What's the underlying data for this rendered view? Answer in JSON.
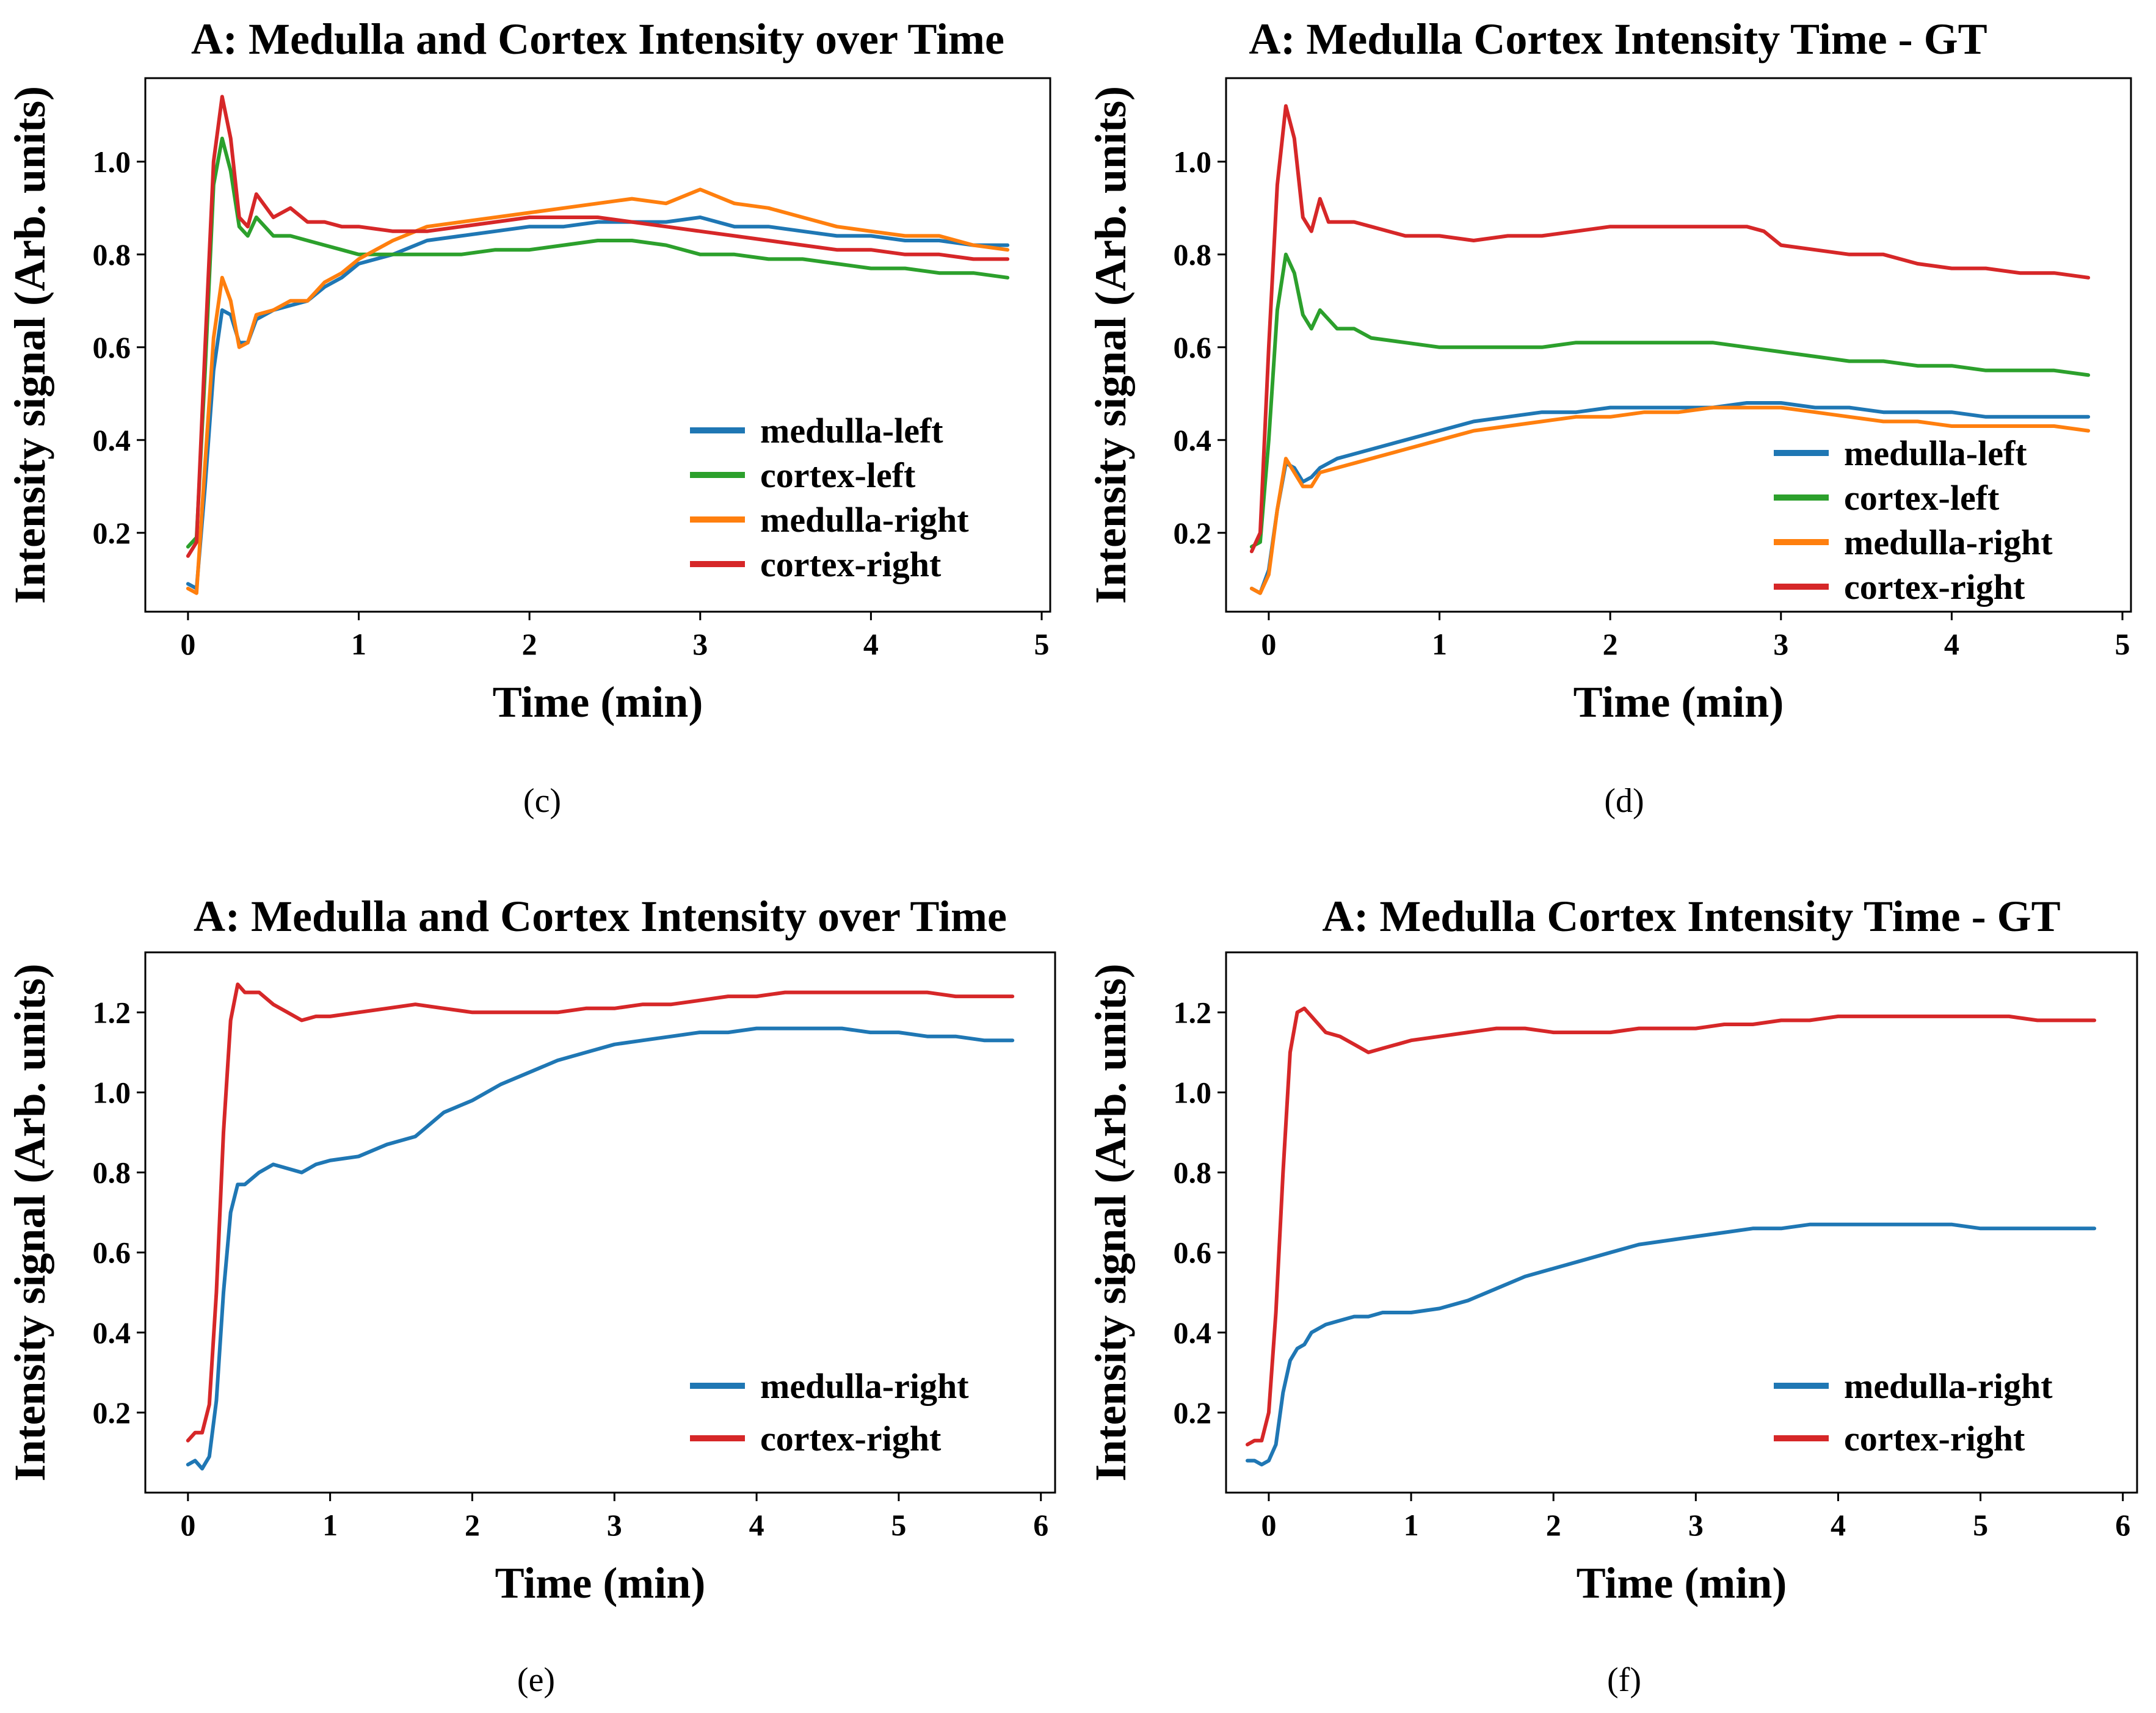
{
  "colors": {
    "blue": "#1f77b4",
    "green": "#2ca02c",
    "orange": "#ff7f0e",
    "red": "#d62728"
  },
  "chart_data": [
    {
      "type": "line",
      "caption": "(c)",
      "title": "A: Medulla and Cortex Intensity over Time",
      "xlabel": "Time (min)",
      "ylabel": "Intensity signal (Arb. units)",
      "xlim": [
        -0.25,
        5.05
      ],
      "ylim": [
        0.03,
        1.18
      ],
      "xticks": [
        0,
        1,
        2,
        3,
        4,
        5
      ],
      "yticks": [
        0.2,
        0.4,
        0.6,
        0.8,
        1.0
      ],
      "legend_position": "lower-right",
      "series": [
        {
          "name": "medulla-left",
          "color": "#1f77b4",
          "x": [
            0,
            0.05,
            0.1,
            0.15,
            0.2,
            0.25,
            0.3,
            0.35,
            0.4,
            0.5,
            0.6,
            0.7,
            0.8,
            0.9,
            1.0,
            1.2,
            1.4,
            1.6,
            1.8,
            2.0,
            2.2,
            2.4,
            2.6,
            2.8,
            3.0,
            3.2,
            3.4,
            3.6,
            3.8,
            4.0,
            4.2,
            4.4,
            4.6,
            4.8
          ],
          "y": [
            0.09,
            0.08,
            0.3,
            0.55,
            0.68,
            0.67,
            0.61,
            0.61,
            0.66,
            0.68,
            0.69,
            0.7,
            0.73,
            0.75,
            0.78,
            0.8,
            0.83,
            0.84,
            0.85,
            0.86,
            0.86,
            0.87,
            0.87,
            0.87,
            0.88,
            0.86,
            0.86,
            0.85,
            0.84,
            0.84,
            0.83,
            0.83,
            0.82,
            0.82
          ]
        },
        {
          "name": "cortex-left",
          "color": "#2ca02c",
          "x": [
            0,
            0.05,
            0.1,
            0.15,
            0.2,
            0.25,
            0.3,
            0.35,
            0.4,
            0.5,
            0.6,
            0.7,
            0.8,
            0.9,
            1.0,
            1.2,
            1.4,
            1.6,
            1.8,
            2.0,
            2.2,
            2.4,
            2.6,
            2.8,
            3.0,
            3.2,
            3.4,
            3.6,
            3.8,
            4.0,
            4.2,
            4.4,
            4.6,
            4.8
          ],
          "y": [
            0.17,
            0.19,
            0.55,
            0.95,
            1.05,
            0.98,
            0.86,
            0.84,
            0.88,
            0.84,
            0.84,
            0.83,
            0.82,
            0.81,
            0.8,
            0.8,
            0.8,
            0.8,
            0.81,
            0.81,
            0.82,
            0.83,
            0.83,
            0.82,
            0.8,
            0.8,
            0.79,
            0.79,
            0.78,
            0.77,
            0.77,
            0.76,
            0.76,
            0.75
          ]
        },
        {
          "name": "medulla-right",
          "color": "#ff7f0e",
          "x": [
            0,
            0.05,
            0.1,
            0.15,
            0.2,
            0.25,
            0.3,
            0.35,
            0.4,
            0.5,
            0.6,
            0.7,
            0.8,
            0.9,
            1.0,
            1.2,
            1.4,
            1.6,
            1.8,
            2.0,
            2.2,
            2.4,
            2.6,
            2.8,
            3.0,
            3.2,
            3.4,
            3.6,
            3.8,
            4.0,
            4.2,
            4.4,
            4.6,
            4.8
          ],
          "y": [
            0.08,
            0.07,
            0.35,
            0.62,
            0.75,
            0.7,
            0.6,
            0.61,
            0.67,
            0.68,
            0.7,
            0.7,
            0.74,
            0.76,
            0.79,
            0.83,
            0.86,
            0.87,
            0.88,
            0.89,
            0.9,
            0.91,
            0.92,
            0.91,
            0.94,
            0.91,
            0.9,
            0.88,
            0.86,
            0.85,
            0.84,
            0.84,
            0.82,
            0.81
          ]
        },
        {
          "name": "cortex-right",
          "color": "#d62728",
          "x": [
            0,
            0.05,
            0.1,
            0.15,
            0.2,
            0.25,
            0.3,
            0.35,
            0.4,
            0.5,
            0.6,
            0.7,
            0.8,
            0.9,
            1.0,
            1.2,
            1.4,
            1.6,
            1.8,
            2.0,
            2.2,
            2.4,
            2.6,
            2.8,
            3.0,
            3.2,
            3.4,
            3.6,
            3.8,
            4.0,
            4.2,
            4.4,
            4.6,
            4.8
          ],
          "y": [
            0.15,
            0.18,
            0.6,
            1.0,
            1.14,
            1.05,
            0.88,
            0.86,
            0.93,
            0.88,
            0.9,
            0.87,
            0.87,
            0.86,
            0.86,
            0.85,
            0.85,
            0.86,
            0.87,
            0.88,
            0.88,
            0.88,
            0.87,
            0.86,
            0.85,
            0.84,
            0.83,
            0.82,
            0.81,
            0.81,
            0.8,
            0.8,
            0.79,
            0.79
          ]
        }
      ]
    },
    {
      "type": "line",
      "caption": "(d)",
      "title": "A: Medulla Cortex Intensity Time - GT",
      "xlabel": "Time (min)",
      "ylabel": "Intensity signal (Arb. units)",
      "xlim": [
        -0.25,
        5.05
      ],
      "ylim": [
        0.03,
        1.18
      ],
      "xticks": [
        0,
        1,
        2,
        3,
        4,
        5
      ],
      "yticks": [
        0.2,
        0.4,
        0.6,
        0.8,
        1.0
      ],
      "legend_position": "lower-right",
      "series": [
        {
          "name": "medulla-left",
          "color": "#1f77b4",
          "x": [
            -0.1,
            -0.05,
            0,
            0.05,
            0.1,
            0.15,
            0.2,
            0.25,
            0.3,
            0.4,
            0.5,
            0.6,
            0.8,
            1.0,
            1.2,
            1.4,
            1.6,
            1.8,
            2.0,
            2.2,
            2.4,
            2.6,
            2.8,
            3.0,
            3.2,
            3.4,
            3.6,
            3.8,
            4.0,
            4.2,
            4.4,
            4.6,
            4.8
          ],
          "y": [
            0.08,
            0.07,
            0.12,
            0.25,
            0.35,
            0.34,
            0.31,
            0.32,
            0.34,
            0.36,
            0.37,
            0.38,
            0.4,
            0.42,
            0.44,
            0.45,
            0.46,
            0.46,
            0.47,
            0.47,
            0.47,
            0.47,
            0.48,
            0.48,
            0.47,
            0.47,
            0.46,
            0.46,
            0.46,
            0.45,
            0.45,
            0.45,
            0.45
          ]
        },
        {
          "name": "cortex-left",
          "color": "#2ca02c",
          "x": [
            -0.1,
            -0.05,
            0,
            0.05,
            0.1,
            0.15,
            0.2,
            0.25,
            0.3,
            0.4,
            0.5,
            0.6,
            0.8,
            1.0,
            1.2,
            1.4,
            1.6,
            1.8,
            2.0,
            2.2,
            2.4,
            2.6,
            2.8,
            3.0,
            3.2,
            3.4,
            3.6,
            3.8,
            4.0,
            4.2,
            4.4,
            4.6,
            4.8
          ],
          "y": [
            0.17,
            0.18,
            0.4,
            0.68,
            0.8,
            0.76,
            0.67,
            0.64,
            0.68,
            0.64,
            0.64,
            0.62,
            0.61,
            0.6,
            0.6,
            0.6,
            0.6,
            0.61,
            0.61,
            0.61,
            0.61,
            0.61,
            0.6,
            0.59,
            0.58,
            0.57,
            0.57,
            0.56,
            0.56,
            0.55,
            0.55,
            0.55,
            0.54
          ]
        },
        {
          "name": "medulla-right",
          "color": "#ff7f0e",
          "x": [
            -0.1,
            -0.05,
            0,
            0.05,
            0.1,
            0.15,
            0.2,
            0.25,
            0.3,
            0.4,
            0.5,
            0.6,
            0.8,
            1.0,
            1.2,
            1.4,
            1.6,
            1.8,
            2.0,
            2.2,
            2.4,
            2.6,
            2.8,
            3.0,
            3.2,
            3.4,
            3.6,
            3.8,
            4.0,
            4.2,
            4.4,
            4.6,
            4.8
          ],
          "y": [
            0.08,
            0.07,
            0.11,
            0.25,
            0.36,
            0.33,
            0.3,
            0.3,
            0.33,
            0.34,
            0.35,
            0.36,
            0.38,
            0.4,
            0.42,
            0.43,
            0.44,
            0.45,
            0.45,
            0.46,
            0.46,
            0.47,
            0.47,
            0.47,
            0.46,
            0.45,
            0.44,
            0.44,
            0.43,
            0.43,
            0.43,
            0.43,
            0.42
          ]
        },
        {
          "name": "cortex-right",
          "color": "#d62728",
          "x": [
            -0.1,
            -0.05,
            0,
            0.05,
            0.1,
            0.15,
            0.2,
            0.25,
            0.3,
            0.35,
            0.4,
            0.5,
            0.6,
            0.8,
            1.0,
            1.2,
            1.4,
            1.6,
            1.8,
            2.0,
            2.2,
            2.4,
            2.6,
            2.8,
            2.9,
            3.0,
            3.2,
            3.4,
            3.6,
            3.8,
            4.0,
            4.2,
            4.4,
            4.6,
            4.8
          ],
          "y": [
            0.16,
            0.2,
            0.6,
            0.95,
            1.12,
            1.05,
            0.88,
            0.85,
            0.92,
            0.87,
            0.87,
            0.87,
            0.86,
            0.84,
            0.84,
            0.83,
            0.84,
            0.84,
            0.85,
            0.86,
            0.86,
            0.86,
            0.86,
            0.86,
            0.85,
            0.82,
            0.81,
            0.8,
            0.8,
            0.78,
            0.77,
            0.77,
            0.76,
            0.76,
            0.75
          ]
        }
      ]
    },
    {
      "type": "line",
      "caption": "(e)",
      "title": "A: Medulla and Cortex Intensity over Time",
      "xlabel": "Time (min)",
      "ylabel": "Intensity signal (Arb. units)",
      "xlim": [
        -0.3,
        6.1
      ],
      "ylim": [
        0.0,
        1.35
      ],
      "xticks": [
        0,
        1,
        2,
        3,
        4,
        5,
        6
      ],
      "yticks": [
        0.2,
        0.4,
        0.6,
        0.8,
        1.0,
        1.2
      ],
      "legend_position": "lower-right",
      "series": [
        {
          "name": "medulla-right",
          "color": "#1f77b4",
          "x": [
            0,
            0.05,
            0.1,
            0.15,
            0.2,
            0.25,
            0.3,
            0.35,
            0.4,
            0.5,
            0.6,
            0.7,
            0.8,
            0.9,
            1.0,
            1.2,
            1.4,
            1.6,
            1.7,
            1.8,
            2.0,
            2.2,
            2.4,
            2.6,
            2.8,
            3.0,
            3.2,
            3.4,
            3.6,
            3.8,
            4.0,
            4.2,
            4.4,
            4.6,
            4.8,
            5.0,
            5.2,
            5.4,
            5.6,
            5.8
          ],
          "y": [
            0.07,
            0.08,
            0.06,
            0.09,
            0.23,
            0.5,
            0.7,
            0.77,
            0.77,
            0.8,
            0.82,
            0.81,
            0.8,
            0.82,
            0.83,
            0.84,
            0.87,
            0.89,
            0.92,
            0.95,
            0.98,
            1.02,
            1.05,
            1.08,
            1.1,
            1.12,
            1.13,
            1.14,
            1.15,
            1.15,
            1.16,
            1.16,
            1.16,
            1.16,
            1.15,
            1.15,
            1.14,
            1.14,
            1.13,
            1.13
          ]
        },
        {
          "name": "cortex-right",
          "color": "#d62728",
          "x": [
            0,
            0.05,
            0.1,
            0.15,
            0.2,
            0.25,
            0.3,
            0.35,
            0.4,
            0.5,
            0.6,
            0.7,
            0.8,
            0.9,
            1.0,
            1.2,
            1.4,
            1.6,
            1.8,
            2.0,
            2.2,
            2.4,
            2.6,
            2.8,
            3.0,
            3.2,
            3.4,
            3.6,
            3.8,
            4.0,
            4.2,
            4.4,
            4.6,
            4.8,
            5.0,
            5.2,
            5.4,
            5.6,
            5.8
          ],
          "y": [
            0.13,
            0.15,
            0.15,
            0.22,
            0.5,
            0.9,
            1.18,
            1.27,
            1.25,
            1.25,
            1.22,
            1.2,
            1.18,
            1.19,
            1.19,
            1.2,
            1.21,
            1.22,
            1.21,
            1.2,
            1.2,
            1.2,
            1.2,
            1.21,
            1.21,
            1.22,
            1.22,
            1.23,
            1.24,
            1.24,
            1.25,
            1.25,
            1.25,
            1.25,
            1.25,
            1.25,
            1.24,
            1.24,
            1.24
          ]
        }
      ]
    },
    {
      "type": "line",
      "caption": "(f)",
      "title": "A: Medulla Cortex Intensity Time - GT",
      "xlabel": "Time (min)",
      "ylabel": "Intensity signal (Arb. units)",
      "xlim": [
        -0.3,
        6.1
      ],
      "ylim": [
        0.0,
        1.35
      ],
      "xticks": [
        0,
        1,
        2,
        3,
        4,
        5,
        6
      ],
      "yticks": [
        0.2,
        0.4,
        0.6,
        0.8,
        1.0,
        1.2
      ],
      "legend_position": "lower-right",
      "series": [
        {
          "name": "medulla-right",
          "color": "#1f77b4",
          "x": [
            -0.15,
            -0.1,
            -0.05,
            0,
            0.05,
            0.1,
            0.15,
            0.2,
            0.25,
            0.3,
            0.4,
            0.5,
            0.6,
            0.7,
            0.8,
            0.9,
            1.0,
            1.2,
            1.4,
            1.6,
            1.8,
            2.0,
            2.2,
            2.4,
            2.6,
            2.8,
            3.0,
            3.2,
            3.4,
            3.6,
            3.8,
            4.0,
            4.2,
            4.4,
            4.6,
            4.8,
            5.0,
            5.2,
            5.4,
            5.6,
            5.8
          ],
          "y": [
            0.08,
            0.08,
            0.07,
            0.08,
            0.12,
            0.25,
            0.33,
            0.36,
            0.37,
            0.4,
            0.42,
            0.43,
            0.44,
            0.44,
            0.45,
            0.45,
            0.45,
            0.46,
            0.48,
            0.51,
            0.54,
            0.56,
            0.58,
            0.6,
            0.62,
            0.63,
            0.64,
            0.65,
            0.66,
            0.66,
            0.67,
            0.67,
            0.67,
            0.67,
            0.67,
            0.67,
            0.66,
            0.66,
            0.66,
            0.66,
            0.66
          ]
        },
        {
          "name": "cortex-right",
          "color": "#d62728",
          "x": [
            -0.15,
            -0.1,
            -0.05,
            0,
            0.05,
            0.1,
            0.15,
            0.2,
            0.25,
            0.3,
            0.4,
            0.5,
            0.6,
            0.7,
            0.8,
            0.9,
            1.0,
            1.2,
            1.4,
            1.6,
            1.8,
            2.0,
            2.2,
            2.4,
            2.6,
            2.8,
            3.0,
            3.2,
            3.4,
            3.6,
            3.8,
            4.0,
            4.2,
            4.4,
            4.6,
            4.8,
            5.0,
            5.2,
            5.4,
            5.6,
            5.8
          ],
          "y": [
            0.12,
            0.13,
            0.13,
            0.2,
            0.45,
            0.8,
            1.1,
            1.2,
            1.21,
            1.19,
            1.15,
            1.14,
            1.12,
            1.1,
            1.11,
            1.12,
            1.13,
            1.14,
            1.15,
            1.16,
            1.16,
            1.15,
            1.15,
            1.15,
            1.16,
            1.16,
            1.16,
            1.17,
            1.17,
            1.18,
            1.18,
            1.19,
            1.19,
            1.19,
            1.19,
            1.19,
            1.19,
            1.19,
            1.18,
            1.18,
            1.18
          ]
        }
      ]
    }
  ]
}
